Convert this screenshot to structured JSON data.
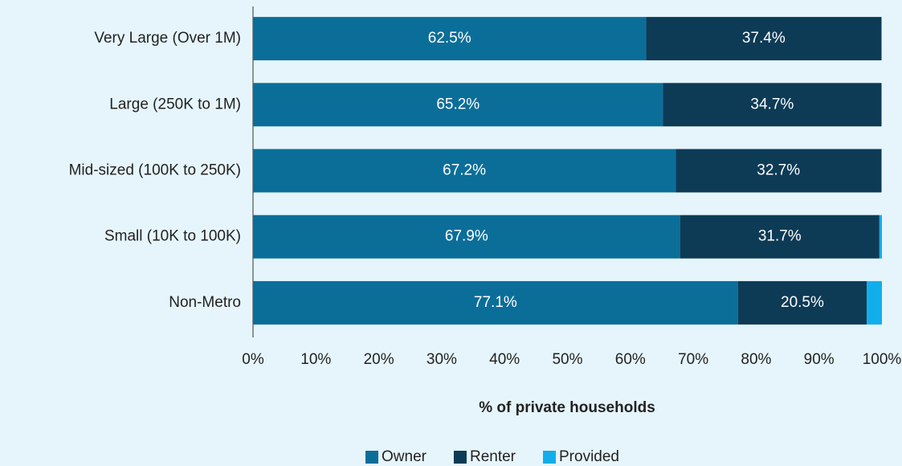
{
  "chart_data": {
    "type": "stacked_barh",
    "categories": [
      "Very Large (Over 1M)",
      "Large (250K to 1M)",
      "Mid-sized (100K to 250K)",
      "Small (10K to 100K)",
      "Non-Metro"
    ],
    "series": [
      {
        "name": "Owner",
        "color": "#0b6e99",
        "values": [
          62.5,
          65.2,
          67.2,
          67.9,
          77.1
        ],
        "value_labels": [
          "62.5%",
          "65.2%",
          "67.2%",
          "67.9%",
          "77.1%"
        ]
      },
      {
        "name": "Renter",
        "color": "#0d3b56",
        "values": [
          37.4,
          34.7,
          32.7,
          31.7,
          20.5
        ],
        "value_labels": [
          "37.4%",
          "34.7%",
          "32.7%",
          "31.7%",
          "20.5%"
        ]
      },
      {
        "name": "Provided",
        "color": "#12aeeb",
        "values": [
          0.1,
          0.1,
          0.1,
          0.4,
          2.4
        ]
      }
    ],
    "xlabel": "% of private households",
    "xlim": [
      0,
      100
    ],
    "xticks": [
      {
        "value": 0,
        "label": "0%"
      },
      {
        "value": 10,
        "label": "10%"
      },
      {
        "value": 20,
        "label": "20%"
      },
      {
        "value": 30,
        "label": "30%"
      },
      {
        "value": 40,
        "label": "40%"
      },
      {
        "value": 50,
        "label": "50%"
      },
      {
        "value": 60,
        "label": "60%"
      },
      {
        "value": 70,
        "label": "70%"
      },
      {
        "value": 80,
        "label": "80%"
      },
      {
        "value": 90,
        "label": "90%"
      },
      {
        "value": 100,
        "label": "100%"
      }
    ],
    "legend": "bottom"
  }
}
